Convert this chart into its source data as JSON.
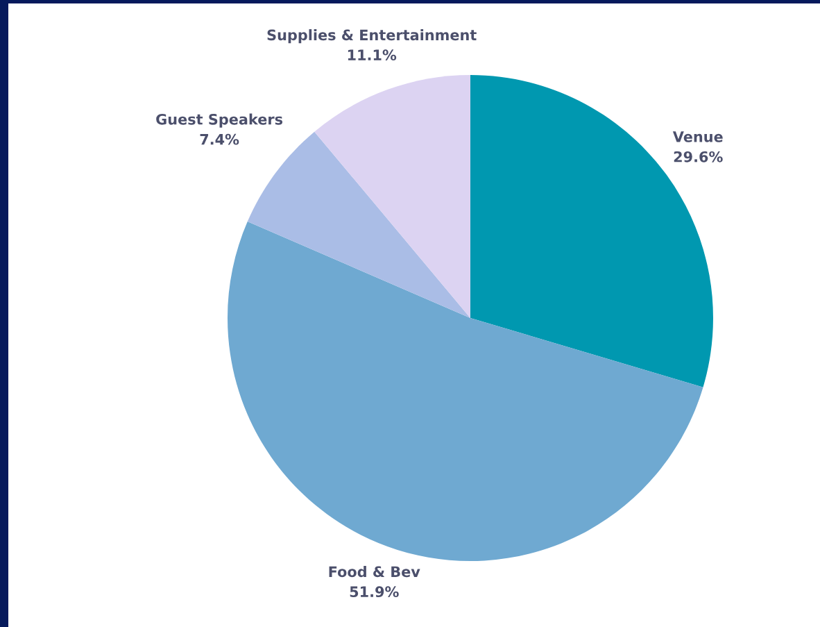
{
  "chart_data": {
    "type": "pie",
    "categories": [
      "Venue",
      "Food & Bev",
      "Guest Speakers",
      "Supplies & Entertainment"
    ],
    "values": [
      29.6,
      51.9,
      7.4,
      11.1
    ],
    "colors": [
      "#0098b0",
      "#6fa9d1",
      "#aabde6",
      "#dcd3f2"
    ],
    "value_labels": [
      "29.6%",
      "51.9%",
      "7.4%",
      "11.1%"
    ]
  }
}
